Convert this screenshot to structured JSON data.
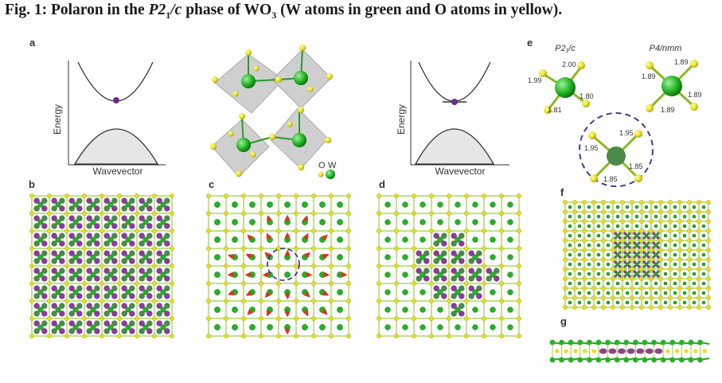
{
  "title": {
    "prefix": "Fig. 1: Polaron in the ",
    "phase_main": "P2",
    "phase_sub": "1",
    "phase_end": "/c",
    "middle": " phase of WO",
    "wo_sub": "3",
    "suffix": " (W atoms in green and O atoms in yellow)."
  },
  "panels": {
    "a": "a",
    "b": "b",
    "c": "c",
    "d": "d",
    "e": "e",
    "f": "f",
    "g": "g"
  },
  "band_left": {
    "ylabel": "Energy",
    "xlabel": "Wavevector"
  },
  "band_right": {
    "ylabel": "Energy",
    "xlabel": "Wavevector"
  },
  "legend": {
    "o_label": "O",
    "w_label": "W"
  },
  "panel_e": {
    "left_title": "P2₁/c",
    "right_title": "P4/nmm",
    "left_bonds": [
      "2.00",
      "1.99",
      "1.80",
      "1.81"
    ],
    "right_bonds": [
      "1.89",
      "1.89",
      "1.89",
      "1.89"
    ],
    "circle_bonds": [
      "1.95",
      "1.95",
      "1.85",
      "1.85"
    ]
  },
  "colors": {
    "oxygen": "#e8e020",
    "tungsten": "#22b422",
    "polaron": "#7a2a8a",
    "octahedron": "#c8c8c8",
    "arrow": "#e03020",
    "dashed_circle": "#4a3a8a"
  }
}
